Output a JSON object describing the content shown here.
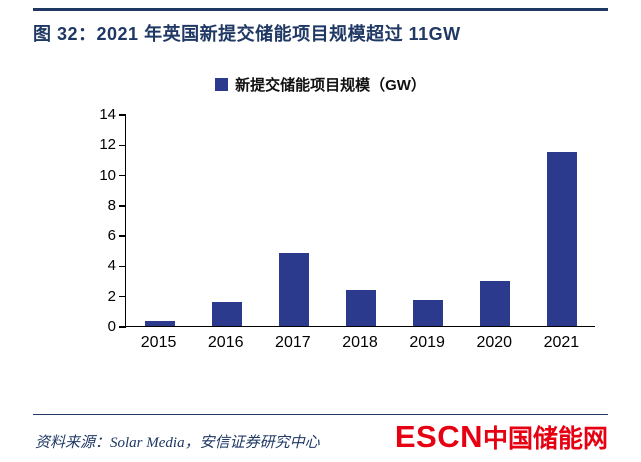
{
  "header": {
    "title": "图 32：2021 年英国新提交储能项目规模超过 11GW"
  },
  "chart_data": {
    "type": "bar",
    "title": "2021 年英国新提交储能项目规模超过 11GW",
    "legend": "新提交储能项目规模（GW）",
    "legend_position": "top",
    "categories": [
      "2015",
      "2016",
      "2017",
      "2018",
      "2019",
      "2020",
      "2021"
    ],
    "values": [
      0.3,
      1.6,
      4.8,
      2.4,
      1.7,
      3.0,
      11.5
    ],
    "xlabel": "",
    "ylabel": "",
    "ylim": [
      0,
      14
    ],
    "yticks": [
      0,
      2,
      4,
      6,
      8,
      10,
      12,
      14
    ],
    "grid": false,
    "bar_color": "#2b3a8c"
  },
  "footer": {
    "source": "资料来源：Solar Media，安信证券研究中心",
    "logo_escn": "ESCN",
    "logo_cn": "中国储能网"
  },
  "colors": {
    "navy": "#1f3864",
    "bar": "#2b3a8c",
    "logo_red": "#e60012"
  }
}
